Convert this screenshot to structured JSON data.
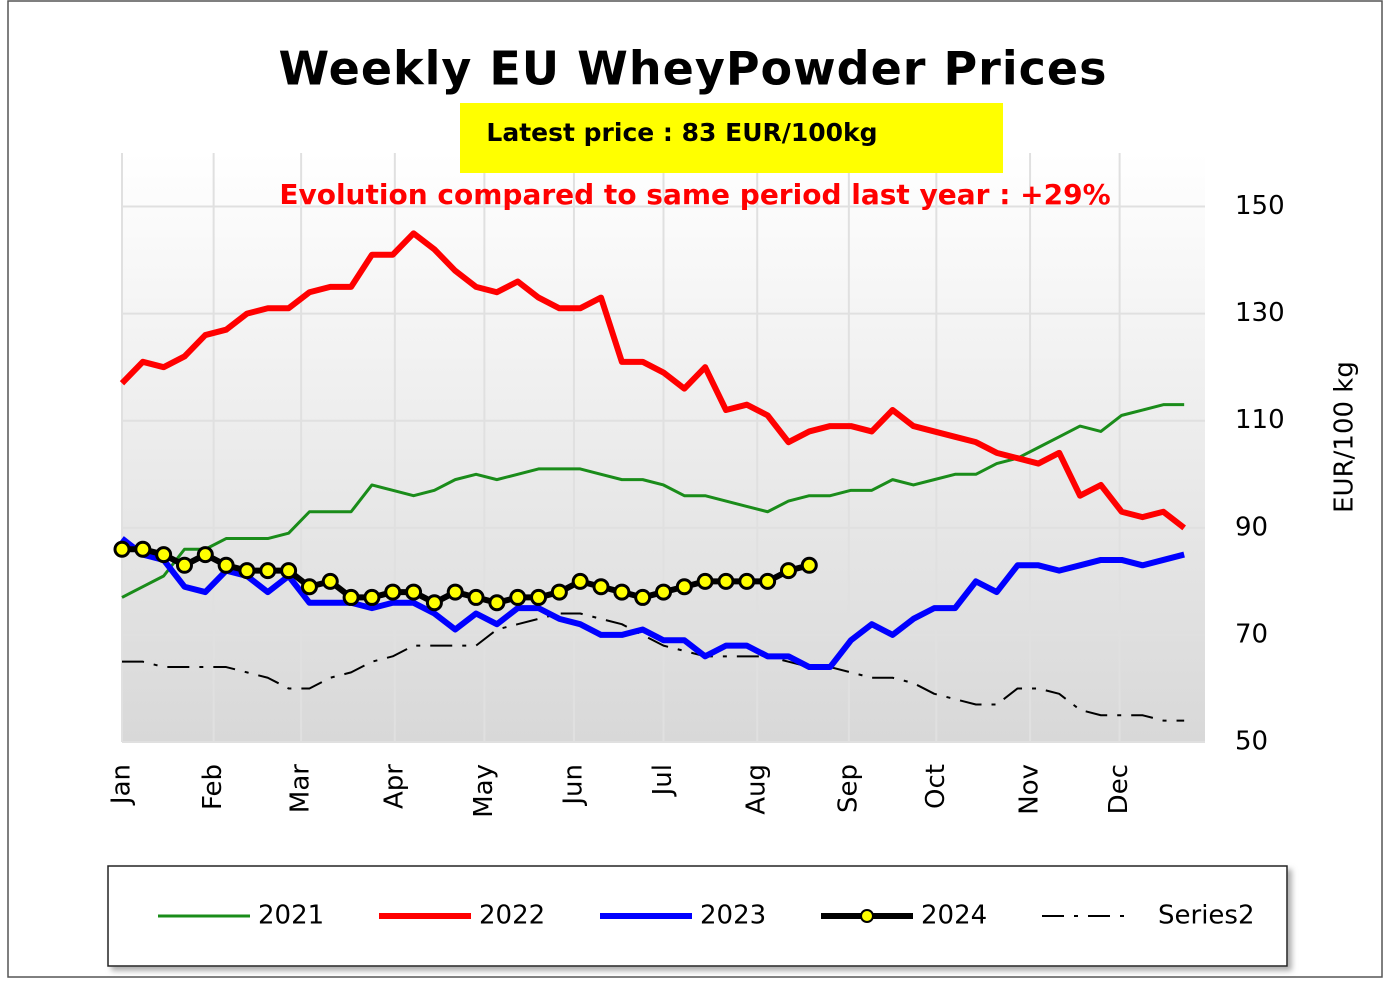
{
  "chart_data": {
    "type": "line",
    "title": "Weekly EU WheyPowder Prices",
    "subtitle": "Latest price : 83 EUR/100kg",
    "annotation": "Evolution compared to same period last year : +29%",
    "y_label": "EUR/100  kg",
    "x": [
      1,
      2,
      3,
      4,
      5,
      6,
      7,
      8,
      9,
      10,
      11,
      12,
      13,
      14,
      15,
      16,
      17,
      18,
      19,
      20,
      21,
      22,
      23,
      24,
      25,
      26,
      27,
      28,
      29,
      30,
      31,
      32,
      33,
      34,
      35,
      36,
      37,
      38,
      39,
      40,
      41,
      42,
      43,
      44,
      45,
      46,
      47,
      48,
      49,
      50,
      51,
      52
    ],
    "xlim": [
      1,
      53
    ],
    "xticks": [
      {
        "value": 1,
        "label": "Jan"
      },
      {
        "value": 5.4,
        "label": "Feb"
      },
      {
        "value": 9.6,
        "label": "Mar"
      },
      {
        "value": 14.1,
        "label": "Apr"
      },
      {
        "value": 18.4,
        "label": "May"
      },
      {
        "value": 22.7,
        "label": "Jun"
      },
      {
        "value": 27.0,
        "label": "Jul"
      },
      {
        "value": 31.5,
        "label": "Aug"
      },
      {
        "value": 35.9,
        "label": "Sep"
      },
      {
        "value": 40.1,
        "label": "Oct"
      },
      {
        "value": 44.6,
        "label": "Nov"
      },
      {
        "value": 48.9,
        "label": "Dec"
      }
    ],
    "ylim": [
      50,
      160
    ],
    "yticks": [
      50,
      70,
      90,
      110,
      130,
      150
    ],
    "y_axis_side": "right",
    "grid": true,
    "legend": "bottom",
    "series": [
      {
        "name": "2021",
        "color": "#1a8c1a",
        "width": 3,
        "values": [
          77,
          79,
          81,
          86,
          86,
          88,
          88,
          88,
          89,
          93,
          93,
          93,
          98,
          97,
          96,
          97,
          99,
          100,
          99,
          100,
          101,
          101,
          101,
          100,
          99,
          99,
          98,
          96,
          96,
          95,
          94,
          93,
          95,
          96,
          96,
          97,
          97,
          99,
          98,
          99,
          100,
          100,
          102,
          103,
          105,
          107,
          109,
          108,
          111,
          112,
          113,
          113
        ]
      },
      {
        "name": "2022",
        "color": "#ff0000",
        "width": 6,
        "values": [
          117,
          121,
          120,
          122,
          126,
          127,
          130,
          131,
          131,
          134,
          135,
          135,
          141,
          141,
          145,
          142,
          138,
          135,
          134,
          136,
          133,
          131,
          131,
          133,
          121,
          121,
          119,
          116,
          120,
          112,
          113,
          111,
          106,
          108,
          109,
          109,
          108,
          112,
          109,
          108,
          107,
          106,
          104,
          103,
          102,
          104,
          96,
          98,
          93,
          92,
          93,
          90
        ]
      },
      {
        "name": "2023",
        "color": "#0000ff",
        "width": 6,
        "values": [
          88,
          85,
          84,
          79,
          78,
          82,
          81,
          78,
          81,
          76,
          76,
          76,
          75,
          76,
          76,
          74,
          71,
          74,
          72,
          75,
          75,
          73,
          72,
          70,
          70,
          71,
          69,
          69,
          66,
          68,
          68,
          66,
          66,
          64,
          64,
          69,
          72,
          70,
          73,
          75,
          75,
          80,
          78,
          83,
          83,
          82,
          83,
          84,
          84,
          83,
          84,
          85
        ]
      },
      {
        "name": "2024",
        "color": "#000000",
        "width": 6,
        "marker": "circle",
        "marker_color": "#ffff00",
        "values": [
          86,
          86,
          85,
          83,
          85,
          83,
          82,
          82,
          82,
          79,
          80,
          77,
          77,
          78,
          78,
          76,
          78,
          77,
          76,
          77,
          77,
          78,
          80,
          79,
          78,
          77,
          78,
          79,
          80,
          80,
          80,
          80,
          82,
          83,
          null,
          null,
          null,
          null,
          null,
          null,
          null,
          null,
          null,
          null,
          null,
          null,
          null,
          null,
          null,
          null,
          null,
          null
        ]
      },
      {
        "name": "Series2",
        "color": "#000000",
        "width": 2,
        "line_style": "dash-dot",
        "values": [
          65,
          65,
          64,
          64,
          64,
          64,
          63,
          62,
          60,
          60,
          62,
          63,
          65,
          66,
          68,
          68,
          68,
          68,
          71,
          72,
          73,
          74,
          74,
          73,
          72,
          70,
          68,
          67,
          66,
          66,
          66,
          66,
          65,
          64,
          64,
          63,
          62,
          62,
          61,
          59,
          58,
          57,
          57,
          60,
          60,
          59,
          56,
          55,
          55,
          55,
          54,
          54
        ]
      }
    ]
  }
}
